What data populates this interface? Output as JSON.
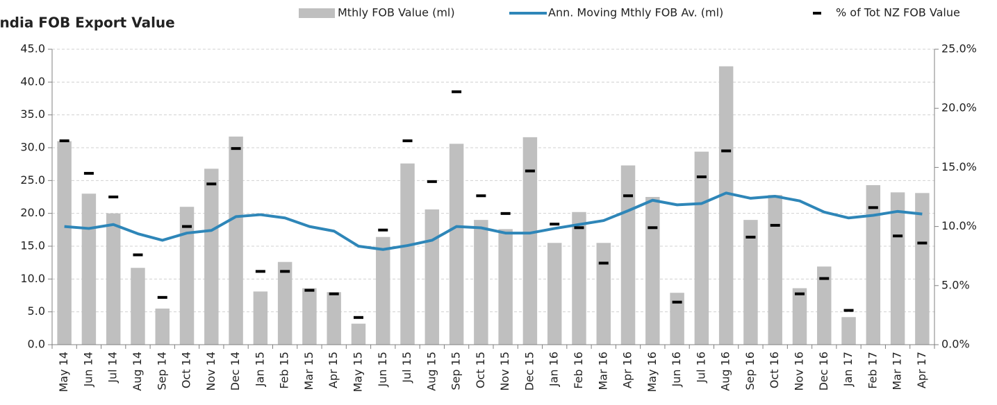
{
  "chart_data": {
    "type": "combo",
    "title": "India FOB Export Value",
    "categories": [
      "May 14",
      "Jun 14",
      "Jul 14",
      "Aug 14",
      "Sep 14",
      "Oct 14",
      "Nov 14",
      "Dec 14",
      "Jan 15",
      "Feb 15",
      "Mar 15",
      "Apr 15",
      "May 15",
      "Jun 15",
      "Jul 15",
      "Aug 15",
      "Sep 15",
      "Oct 15",
      "Nov 15",
      "Dec 15",
      "Jan 16",
      "Feb 16",
      "Mar 16",
      "Apr 16",
      "May 16",
      "Jun 16",
      "Jul 16",
      "Aug 16",
      "Sep 16",
      "Oct 16",
      "Nov 16",
      "Dec 16",
      "Jan 17",
      "Feb 17",
      "Mar 17",
      "Apr 17"
    ],
    "series": [
      {
        "name": "Mthly FOB Value (ml)",
        "type": "bar",
        "color": "#bfbfbf",
        "values": [
          31.0,
          23.0,
          20.0,
          11.7,
          5.5,
          21.0,
          26.8,
          31.7,
          8.1,
          12.6,
          8.6,
          8.0,
          3.2,
          16.4,
          27.6,
          20.6,
          30.6,
          19.0,
          17.6,
          31.6,
          15.5,
          20.2,
          15.5,
          27.3,
          22.5,
          7.9,
          29.4,
          42.4,
          19.0,
          22.8,
          8.6,
          11.9,
          4.2,
          24.3,
          23.2,
          23.1
        ]
      },
      {
        "name": "Ann. Moving Mthly FOB Av. (ml)",
        "type": "line",
        "color": "#2e86b8",
        "values": [
          18.0,
          17.7,
          18.3,
          16.9,
          15.9,
          17.0,
          17.4,
          19.5,
          19.8,
          19.3,
          18.0,
          17.3,
          15.0,
          14.5,
          15.1,
          15.9,
          18.0,
          17.8,
          17.0,
          17.0,
          17.7,
          18.3,
          18.9,
          20.4,
          22.0,
          21.3,
          21.5,
          23.1,
          22.3,
          22.6,
          21.9,
          20.2,
          19.3,
          19.7,
          20.3,
          19.9
        ]
      },
      {
        "name": "% of Tot NZ FOB Value",
        "type": "marker",
        "axis": "y2",
        "color": "#000000",
        "values": [
          17.25,
          14.5,
          12.5,
          7.6,
          4.0,
          10.0,
          13.6,
          16.6,
          6.2,
          6.2,
          4.6,
          4.3,
          2.3,
          9.7,
          17.25,
          13.8,
          21.4,
          12.6,
          11.1,
          14.7,
          10.2,
          9.9,
          6.9,
          12.6,
          9.9,
          3.6,
          14.2,
          16.4,
          9.1,
          10.1,
          4.3,
          5.6,
          2.9,
          11.6,
          9.2,
          8.6
        ]
      }
    ],
    "ylim": [
      0,
      45
    ],
    "yticks": [
      {
        "value": 0,
        "label": "0.0"
      },
      {
        "value": 5,
        "label": "5.0"
      },
      {
        "value": 10,
        "label": "10.0"
      },
      {
        "value": 15,
        "label": "15.0"
      },
      {
        "value": 20,
        "label": "20.0"
      },
      {
        "value": 25,
        "label": "25.0"
      },
      {
        "value": 30,
        "label": "30.0"
      },
      {
        "value": 35,
        "label": "35.0"
      },
      {
        "value": 40,
        "label": "40.0"
      },
      {
        "value": 45,
        "label": "45.0"
      }
    ],
    "y2lim": [
      0,
      25
    ],
    "y2ticks": [
      {
        "value": 0,
        "label": "0.0%"
      },
      {
        "value": 5,
        "label": "5.0%"
      },
      {
        "value": 10,
        "label": "10.0%"
      },
      {
        "value": 15,
        "label": "15.0%"
      },
      {
        "value": 20,
        "label": "20.0%"
      },
      {
        "value": 25,
        "label": "25.0%"
      }
    ],
    "grid": true,
    "legend": "top-right"
  }
}
